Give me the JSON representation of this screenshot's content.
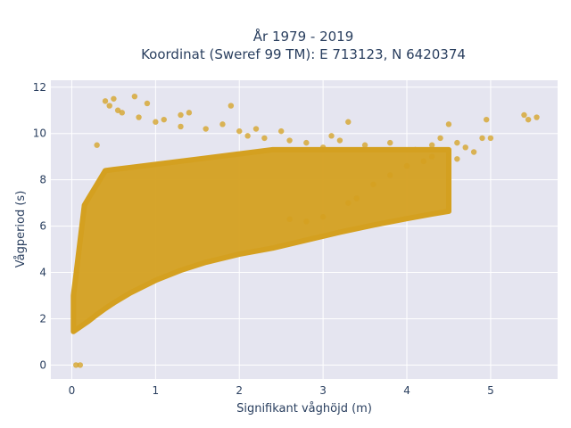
{
  "chart_data": {
    "type": "scatter",
    "title_line1": "År 1979 - 2019",
    "title_line2": "Koordinat (Sweref 99 TM): E 713123, N 6420374",
    "xlabel": "Signifikant våghöjd (m)",
    "ylabel": "Vågperiod (s)",
    "xlim": [
      -0.25,
      5.8
    ],
    "ylim": [
      -0.6,
      12.3
    ],
    "xticks": [
      0,
      1,
      2,
      3,
      4,
      5
    ],
    "yticks": [
      0,
      2,
      4,
      6,
      8,
      10,
      12
    ],
    "grid": true,
    "marker_color": "#D4A020",
    "background_color": "#E5E5F0",
    "points": [
      [
        0.05,
        0.0
      ],
      [
        0.1,
        0.0
      ],
      [
        0.3,
        9.5
      ],
      [
        0.4,
        11.4
      ],
      [
        0.45,
        11.2
      ],
      [
        0.5,
        11.5
      ],
      [
        0.55,
        11.0
      ],
      [
        0.6,
        10.9
      ],
      [
        0.75,
        11.6
      ],
      [
        0.8,
        10.7
      ],
      [
        0.9,
        11.3
      ],
      [
        1.0,
        10.5
      ],
      [
        1.1,
        10.6
      ],
      [
        1.3,
        10.3
      ],
      [
        1.4,
        10.9
      ],
      [
        1.6,
        10.2
      ],
      [
        1.8,
        10.4
      ],
      [
        1.9,
        11.2
      ],
      [
        2.1,
        9.9
      ],
      [
        2.3,
        9.8
      ],
      [
        2.5,
        10.1
      ],
      [
        2.6,
        9.7
      ],
      [
        2.8,
        9.6
      ],
      [
        3.0,
        9.4
      ],
      [
        3.2,
        9.7
      ],
      [
        3.5,
        9.5
      ],
      [
        3.8,
        9.6
      ],
      [
        4.1,
        9.3
      ],
      [
        4.3,
        9.5
      ],
      [
        4.4,
        9.8
      ],
      [
        4.5,
        10.4
      ],
      [
        4.6,
        9.6
      ],
      [
        4.7,
        9.4
      ],
      [
        4.8,
        9.2
      ],
      [
        4.9,
        9.8
      ],
      [
        5.0,
        9.8
      ],
      [
        4.95,
        10.6
      ],
      [
        5.4,
        10.8
      ],
      [
        5.45,
        10.6
      ],
      [
        5.55,
        10.7
      ],
      [
        2.6,
        6.3
      ],
      [
        2.8,
        6.2
      ],
      [
        3.0,
        6.4
      ],
      [
        3.3,
        7.0
      ],
      [
        3.4,
        7.2
      ],
      [
        3.6,
        7.8
      ],
      [
        3.8,
        8.2
      ],
      [
        4.0,
        8.6
      ],
      [
        4.2,
        8.8
      ],
      [
        4.3,
        9.0
      ],
      [
        4.6,
        8.9
      ],
      [
        1.3,
        10.8
      ],
      [
        2.0,
        10.1
      ],
      [
        2.2,
        10.2
      ],
      [
        3.3,
        10.5
      ],
      [
        3.1,
        9.9
      ]
    ]
  }
}
